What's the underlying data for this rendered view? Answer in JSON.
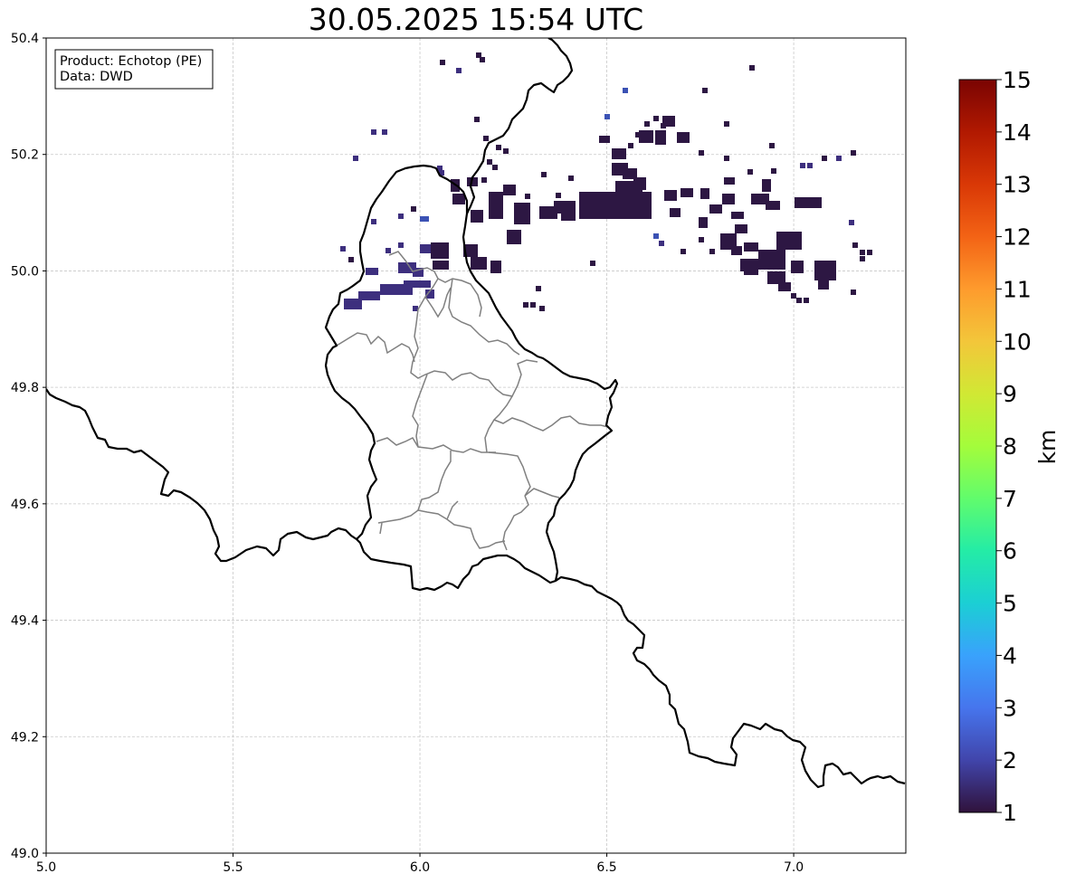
{
  "title": "30.05.2025 15:54 UTC",
  "info_box": {
    "product_line": "Product: Echotop (PE)",
    "data_line": "Data: DWD"
  },
  "map": {
    "lon_range": [
      5.0,
      7.3
    ],
    "lat_range": [
      49.0,
      50.4
    ],
    "x_ticks": [
      "5.0",
      "5.5",
      "6.0",
      "6.5",
      "7.0"
    ],
    "x_tick_values": [
      5.0,
      5.5,
      6.0,
      6.5,
      7.0
    ],
    "y_ticks": [
      "49.0",
      "49.2",
      "49.4",
      "49.6",
      "49.8",
      "50.0",
      "50.2",
      "50.4"
    ],
    "y_tick_values": [
      49.0,
      49.2,
      49.4,
      49.6,
      49.8,
      50.0,
      50.2,
      50.4
    ],
    "grid": true,
    "border_color": "#000000",
    "admin_border_color": "#808080"
  },
  "colorbar": {
    "label": "km",
    "min": 1,
    "max": 15,
    "ticks": [
      "1",
      "2",
      "3",
      "4",
      "5",
      "6",
      "7",
      "8",
      "9",
      "10",
      "11",
      "12",
      "13",
      "14",
      "15"
    ],
    "colormap": "turbo",
    "stops": [
      "#30123b",
      "#4145ab",
      "#4675ed",
      "#39a2fc",
      "#1bcfd4",
      "#24eca6",
      "#61fc6c",
      "#a4fc3b",
      "#d1e834",
      "#f3c63a",
      "#fe9b2d",
      "#f36315",
      "#d93806",
      "#b11901",
      "#7a0402"
    ]
  }
}
